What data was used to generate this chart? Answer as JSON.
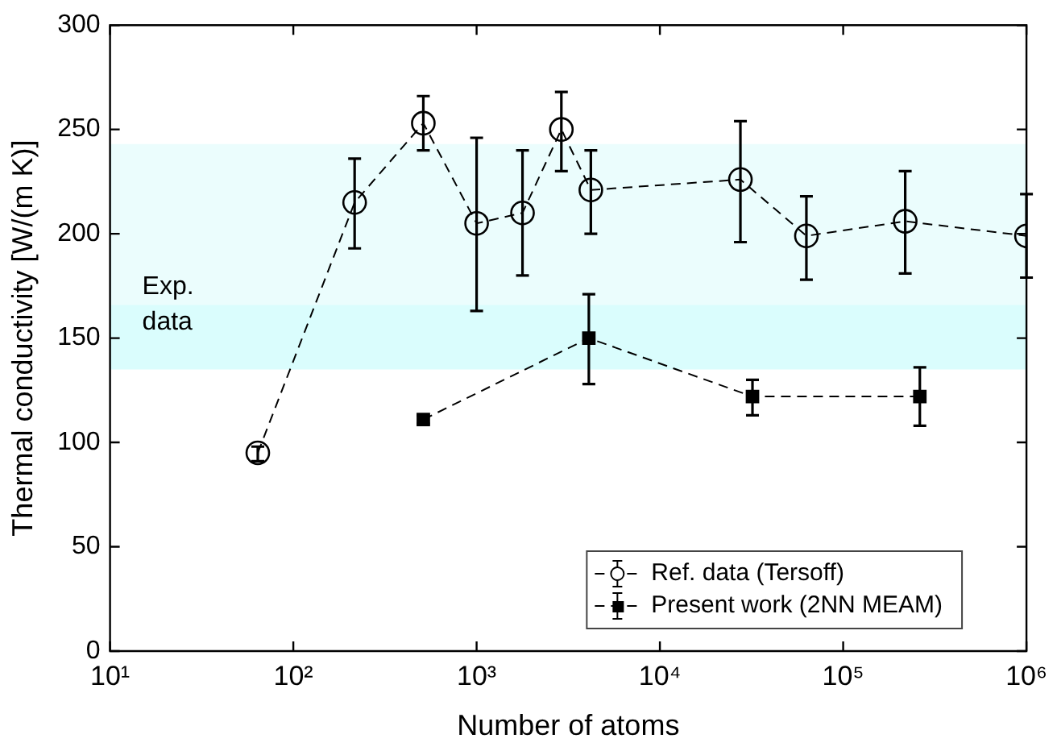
{
  "chart_data": {
    "type": "line",
    "xlabel": "Number of atoms",
    "ylabel": "Thermal conductivity [W/(m K)]",
    "log": "x",
    "line_style": "dashed",
    "grid": false,
    "legend": "bottom right",
    "xlim": [
      10,
      1000000
    ],
    "xticks": [
      {
        "value": 10,
        "label": "10¹"
      },
      {
        "value": 100,
        "label": "10²"
      },
      {
        "value": 1000,
        "label": "10³"
      },
      {
        "value": 10000,
        "label": "10⁴"
      },
      {
        "value": 100000,
        "label": "10⁵"
      },
      {
        "value": 1000000,
        "label": "10⁶"
      }
    ],
    "ylim": [
      0,
      300
    ],
    "yticks": [
      0,
      50,
      100,
      150,
      200,
      250,
      300
    ],
    "bands": [
      {
        "axis": "y",
        "from": 166,
        "to": 243,
        "color": "#ebfdfd"
      },
      {
        "axis": "y",
        "from": 135,
        "to": 166,
        "color": "#dafdfd"
      }
    ],
    "annotations": [
      "Exp.\ndata"
    ],
    "series": [
      {
        "name": "Ref. data (Tersoff)",
        "color": "#000000",
        "marker": "circle",
        "x": [
          64,
          216,
          512,
          1000,
          1780,
          2900,
          4200,
          27500,
          63000,
          218000,
          1000000
        ],
        "values": [
          95,
          215,
          253,
          205,
          210,
          250,
          221,
          226,
          199,
          206,
          199
        ],
        "errors": [
          [
            91,
            98
          ],
          [
            193,
            236
          ],
          [
            240,
            266
          ],
          [
            163,
            246
          ],
          [
            180,
            240
          ],
          [
            230,
            268
          ],
          [
            200,
            240
          ],
          [
            196,
            254
          ],
          [
            178,
            218
          ],
          [
            181,
            230
          ],
          [
            179,
            219
          ]
        ]
      },
      {
        "name": "Present work (2NN MEAM)",
        "color": "#000000",
        "marker": "square",
        "x": [
          512,
          4096,
          32000,
          262000
        ],
        "values": [
          111,
          150,
          122,
          122
        ],
        "errors": [
          [
            109,
            113
          ],
          [
            128,
            171
          ],
          [
            113,
            130
          ],
          [
            108,
            136
          ]
        ]
      }
    ]
  }
}
